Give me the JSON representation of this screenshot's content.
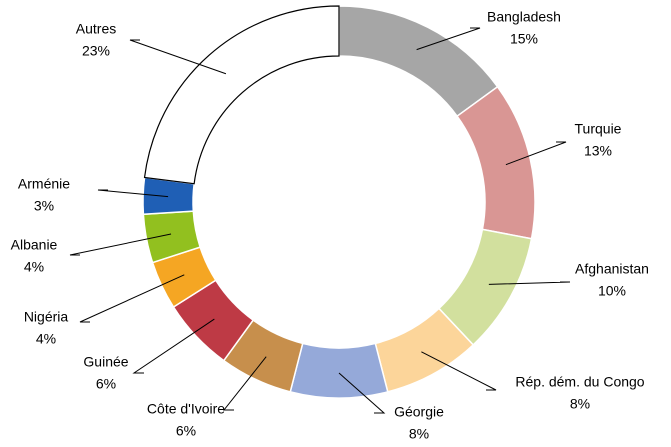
{
  "chart_data": {
    "type": "donut",
    "categories": [
      "Bangladesh",
      "Turquie",
      "Afghanistan",
      "Rép. dém. du Congo",
      "Géorgie",
      "Côte d'Ivoire",
      "Guinée",
      "Nigéria",
      "Albanie",
      "Arménie",
      "Autres"
    ],
    "values": [
      15,
      13,
      10,
      8,
      8,
      6,
      6,
      4,
      4,
      3,
      23
    ],
    "value_labels": [
      "15%",
      "13%",
      "10%",
      "8%",
      "8%",
      "6%",
      "6%",
      "4%",
      "4%",
      "3%",
      "23%"
    ],
    "colors": [
      "#a6a6a6",
      "#d99694",
      "#d2e09e",
      "#fcd59a",
      "#95a9d9",
      "#c78f4c",
      "#be3a45",
      "#f5a623",
      "#92c01f",
      "#1f5fb5",
      "#ffffff"
    ]
  }
}
